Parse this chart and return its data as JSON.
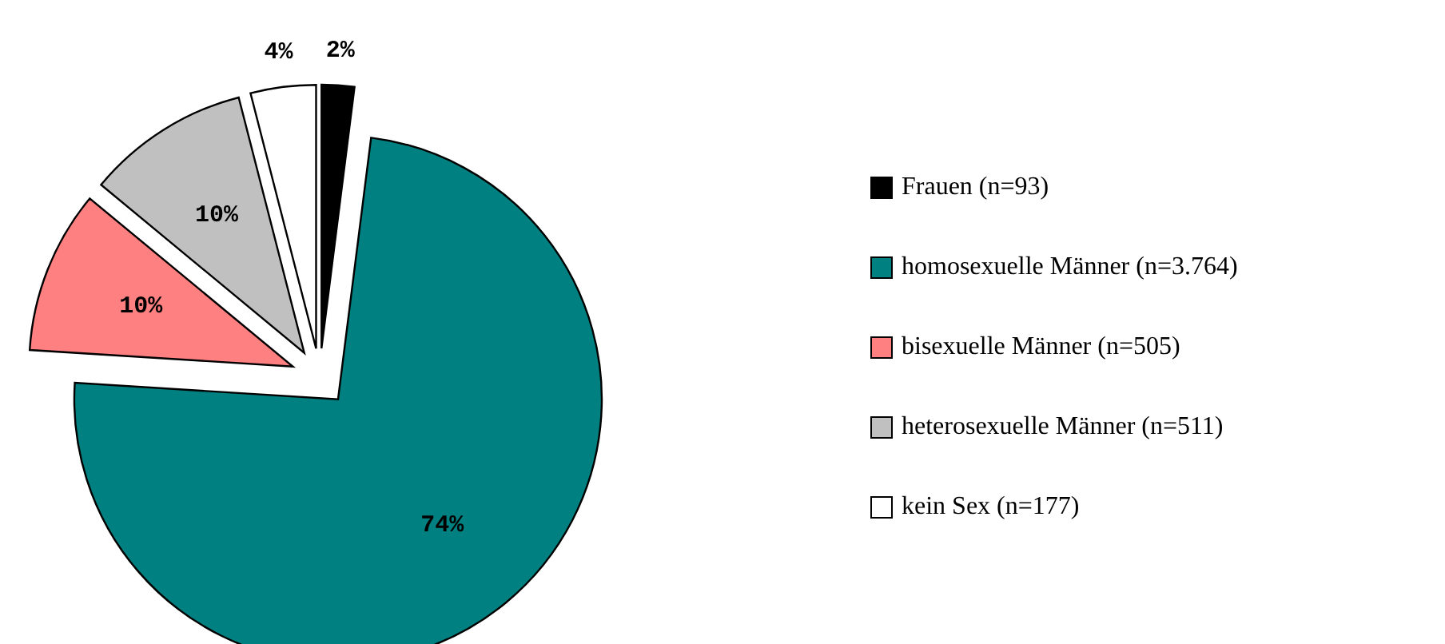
{
  "chart_data": {
    "type": "pie",
    "categories": [
      "Frauen (n=93)",
      "homosexuelle Männer (n=3.764)",
      "bisexuelle Männer (n=505)",
      "heterosexuelle Männer (n=511)",
      "kein Sex (n=177)"
    ],
    "values": [
      2,
      74,
      10,
      10,
      4
    ],
    "colors": [
      "#000000",
      "#008080",
      "#ff8080",
      "#c0c0c0",
      "#ffffff"
    ],
    "value_labels": [
      "2%",
      "74%",
      "10%",
      "10%",
      "4%"
    ],
    "legend": "right"
  }
}
